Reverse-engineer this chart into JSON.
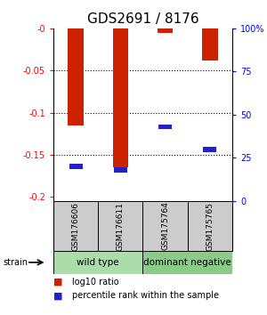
{
  "title": "GDS2691 / 8176",
  "samples": [
    "GSM176606",
    "GSM176611",
    "GSM175764",
    "GSM175765"
  ],
  "log10_ratio": [
    -0.115,
    -0.165,
    -0.005,
    -0.038
  ],
  "percentile_rank": [
    20.0,
    18.0,
    43.0,
    30.0
  ],
  "groups": [
    {
      "label": "wild type",
      "samples": [
        0,
        1
      ],
      "color": "#aaddaa"
    },
    {
      "label": "dominant negative",
      "samples": [
        2,
        3
      ],
      "color": "#88cc88"
    }
  ],
  "ylim_left": [
    0.0,
    -0.205
  ],
  "ylim_right": [
    100,
    0
  ],
  "yticks_left": [
    0,
    -0.05,
    -0.1,
    -0.15,
    -0.2
  ],
  "ytick_labels_left": [
    "-0",
    "-0.05",
    "-0.1",
    "-0.15",
    "-0.2"
  ],
  "yticks_right": [
    100,
    75,
    50,
    25,
    0
  ],
  "ytick_labels_right": [
    "100%",
    "75",
    "50",
    "25",
    "0"
  ],
  "bar_color": "#cc2200",
  "marker_color": "#2222cc",
  "background_color": "#ffffff",
  "label_area_color": "#cccccc",
  "title_fontsize": 11,
  "bar_width": 0.35,
  "grid_yticks": [
    -0.05,
    -0.1,
    -0.15
  ]
}
